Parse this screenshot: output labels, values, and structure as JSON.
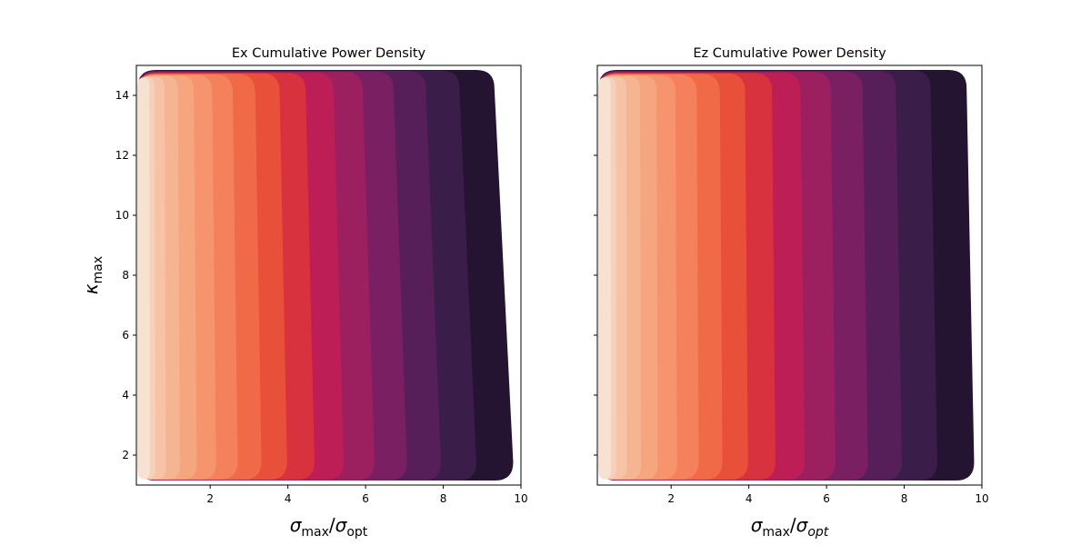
{
  "chart_data": [
    {
      "type": "contourf",
      "title": "Ex Cumulative Power Density",
      "xlabel": {
        "main": "σ",
        "sub": "max",
        "sep": "/σ",
        "sub2": "opt",
        "sub2_italic": false
      },
      "ylabel": {
        "main": "κ",
        "sub": "max"
      },
      "xlim": [
        0.1,
        10
      ],
      "ylim": [
        1,
        15
      ],
      "xticks": [
        2,
        4,
        6,
        8,
        10
      ],
      "yticks": [
        2,
        4,
        6,
        8,
        10,
        12,
        14
      ],
      "show_ytick_labels": true,
      "grid": false,
      "colormap": "rocket",
      "colors": [
        "#241431",
        "#3b1d4a",
        "#571f5a",
        "#7a1f62",
        "#9c1f60",
        "#bd1e55",
        "#d8323f",
        "#e9503a",
        "#f06a48",
        "#f4815b",
        "#f5946d",
        "#f6a67f",
        "#f6b592",
        "#f6c3a6",
        "#f6d0b8",
        "#f7e2d2"
      ],
      "levels": 16,
      "curvature": 0.05
    },
    {
      "type": "contourf",
      "title": "Ez Cumulative Power Density",
      "xlabel": {
        "main": "σ",
        "sub": "max",
        "sep": "/σ",
        "sub2": "opt",
        "sub2_italic": true
      },
      "ylabel": null,
      "xlim": [
        0.1,
        10
      ],
      "ylim": [
        1,
        15
      ],
      "xticks": [
        2,
        4,
        6,
        8,
        10
      ],
      "yticks": [
        2,
        4,
        6,
        8,
        10,
        12,
        14
      ],
      "show_ytick_labels": false,
      "grid": false,
      "colormap": "rocket",
      "colors": [
        "#241431",
        "#3b1d4a",
        "#571f5a",
        "#7a1f62",
        "#9c1f60",
        "#bd1e55",
        "#d8323f",
        "#e9503a",
        "#f06a48",
        "#f4815b",
        "#f5946d",
        "#f6a67f",
        "#f6b592",
        "#f6c3a6",
        "#f6d0b8",
        "#f7e2d2"
      ],
      "levels": 16,
      "curvature": 0.02
    }
  ]
}
